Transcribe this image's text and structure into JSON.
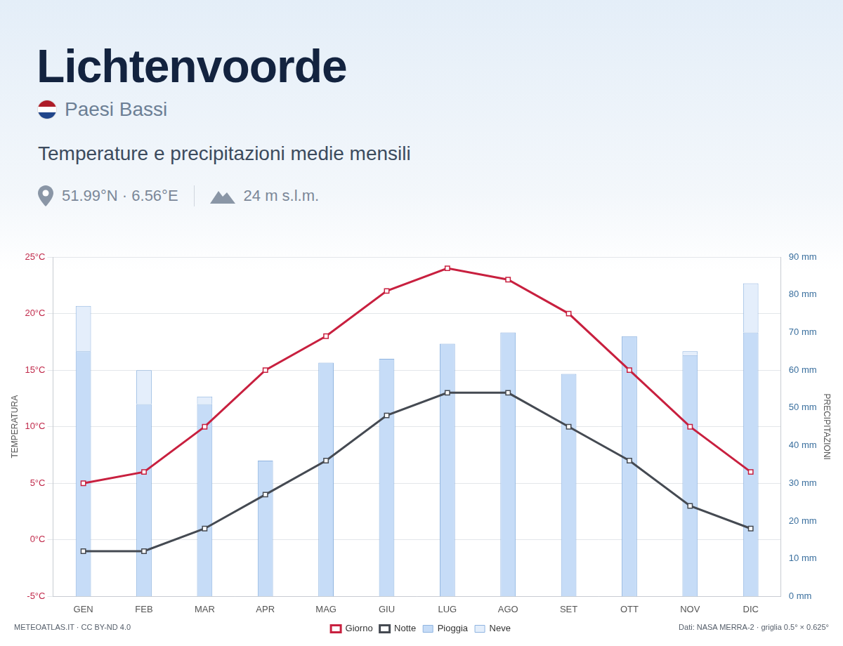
{
  "header": {
    "title": "Lichtenvoorde",
    "country": "Paesi Bassi",
    "coordinates": "51.99°N · 6.56°E",
    "elevation": "24 m s.l.m."
  },
  "footer": {
    "left": "METEOATLAS.IT · CC BY-ND 4.0",
    "right": "Dati: NASA MERRA-2 · griglia 0.5° × 0.625°"
  },
  "chart_data": {
    "type": "bar",
    "title": "Temperature e precipitazioni medie mensili",
    "categories": [
      "GEN",
      "FEB",
      "MAR",
      "APR",
      "MAG",
      "GIU",
      "LUG",
      "AGO",
      "SET",
      "OTT",
      "NOV",
      "DIC"
    ],
    "y_label": "TEMPERATURA",
    "y2_label": "PRECIPITAZIONI",
    "series": [
      {
        "name": "Giorno",
        "type": "line",
        "color": "#c8203f",
        "marker": "square",
        "values": [
          5,
          6,
          10,
          15,
          18,
          22,
          24,
          23,
          20,
          15,
          10,
          6
        ]
      },
      {
        "name": "Notte",
        "type": "line",
        "color": "#454a52",
        "marker": "square",
        "values": [
          -1,
          -1,
          1,
          4,
          7,
          11,
          13,
          13,
          10,
          7,
          3,
          1
        ]
      },
      {
        "name": "Pioggia",
        "type": "bar",
        "axis": "y2",
        "color": "#c6dcf7",
        "values": [
          65,
          51,
          51,
          36,
          62,
          63,
          67,
          70,
          59,
          69,
          64,
          70
        ]
      },
      {
        "name": "Neve",
        "type": "bar",
        "axis": "y2",
        "color": "#e4eefb",
        "values": [
          12,
          9,
          2,
          0,
          0,
          0,
          0,
          0,
          0,
          0,
          1,
          13
        ]
      }
    ],
    "ylim": [
      -5,
      25
    ],
    "yticks": [
      {
        "value": -5,
        "label": "-5°C"
      },
      {
        "value": 0,
        "label": "0°C"
      },
      {
        "value": 5,
        "label": "5°C"
      },
      {
        "value": 10,
        "label": "10°C"
      },
      {
        "value": 15,
        "label": "15°C"
      },
      {
        "value": 20,
        "label": "20°C"
      },
      {
        "value": 25,
        "label": "25°C"
      }
    ],
    "y2lim": [
      0,
      90
    ],
    "y2ticks": [
      {
        "value": 0,
        "label": "0 mm"
      },
      {
        "value": 10,
        "label": "10 mm"
      },
      {
        "value": 20,
        "label": "20 mm"
      },
      {
        "value": 30,
        "label": "30 mm"
      },
      {
        "value": 40,
        "label": "40 mm"
      },
      {
        "value": 50,
        "label": "50 mm"
      },
      {
        "value": 60,
        "label": "60 mm"
      },
      {
        "value": 70,
        "label": "70 mm"
      },
      {
        "value": 80,
        "label": "80 mm"
      },
      {
        "value": 90,
        "label": "90 mm"
      }
    ],
    "stacked": true,
    "grid": true,
    "legend": "bottom"
  }
}
